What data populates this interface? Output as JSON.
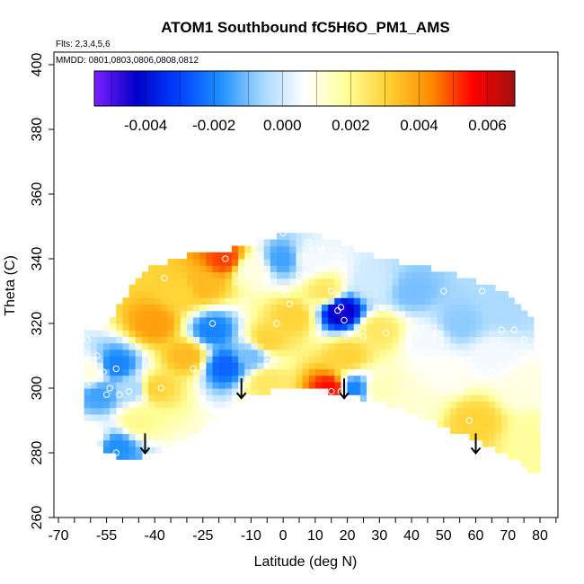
{
  "chart_data": {
    "type": "heatmap",
    "title": "ATOM1 Southbound fC5H6O_PM1_AMS",
    "flights_note": "Flts: 2,3,4,5,6",
    "dates_note": "MMDD: 0801,0803,0806,0808,0812",
    "xlabel": "Latitude (deg N)",
    "ylabel": "Theta (C)",
    "xlim": [
      -70,
      85
    ],
    "ylim": [
      260,
      400
    ],
    "x_tick_labels": [
      "-70",
      "-55",
      "-40",
      "-25",
      "-10",
      "0",
      "10",
      "20",
      "30",
      "40",
      "50",
      "60",
      "70",
      "80"
    ],
    "x_tick_values": [
      -70,
      -55,
      -40,
      -25,
      -10,
      0,
      10,
      20,
      30,
      40,
      50,
      60,
      70,
      80
    ],
    "x_minor_ticks": [
      -65,
      -60,
      -50,
      -45,
      -35,
      -30,
      -20,
      -15,
      -5,
      5,
      15,
      25,
      35,
      45,
      55,
      65,
      75,
      85
    ],
    "y_tick_labels": [
      "260",
      "280",
      "300",
      "320",
      "340",
      "360",
      "380",
      "400"
    ],
    "y_tick_values": [
      260,
      280,
      300,
      320,
      340,
      360,
      380,
      400
    ],
    "colorbar": {
      "range": [
        -0.0055,
        0.0068
      ],
      "tick_labels": [
        "-0.004",
        "-0.002",
        "0.000",
        "0.002",
        "0.004",
        "0.006"
      ],
      "tick_values": [
        -0.004,
        -0.002,
        0.0,
        0.002,
        0.004,
        0.006
      ],
      "colors": [
        "#7f1fff",
        "#0000c8",
        "#0040ff",
        "#1e90ff",
        "#a6d8ff",
        "#ffffff",
        "#ffff99",
        "#ffd030",
        "#ff8c00",
        "#ff0000",
        "#a01010"
      ]
    },
    "field": [
      [
        -60,
        305,
        0.001
      ],
      [
        -57,
        298,
        -0.0015
      ],
      [
        -52,
        307,
        -0.002
      ],
      [
        -47,
        300,
        -0.0005
      ],
      [
        -60,
        285,
        0.0008
      ],
      [
        -52,
        282,
        -0.0018
      ],
      [
        -45,
        290,
        0.002
      ],
      [
        -40,
        300,
        0.003
      ],
      [
        -30,
        310,
        0.0035
      ],
      [
        -40,
        320,
        0.004
      ],
      [
        -32,
        330,
        0.003
      ],
      [
        -25,
        332,
        0.0035
      ],
      [
        -18,
        340,
        0.005
      ],
      [
        -10,
        337,
        0.001
      ],
      [
        -22,
        318,
        -0.002
      ],
      [
        -18,
        307,
        -0.0025
      ],
      [
        -10,
        310,
        -0.001
      ],
      [
        -5,
        315,
        0.003
      ],
      [
        3,
        322,
        0.003
      ],
      [
        0,
        340,
        -0.0015
      ],
      [
        8,
        340,
        0.0005
      ],
      [
        13,
        330,
        0.0025
      ],
      [
        18,
        324,
        -0.0045
      ],
      [
        20,
        310,
        0.003
      ],
      [
        15,
        300,
        0.0055
      ],
      [
        22,
        300,
        -0.002
      ],
      [
        30,
        318,
        0.0025
      ],
      [
        28,
        332,
        0.0
      ],
      [
        40,
        330,
        -0.001
      ],
      [
        45,
        315,
        0.0005
      ],
      [
        55,
        320,
        -0.0008
      ],
      [
        65,
        310,
        0.0005
      ],
      [
        70,
        325,
        -0.0005
      ],
      [
        75,
        300,
        0.001
      ],
      [
        60,
        290,
        0.003
      ],
      [
        78,
        285,
        0.0018
      ],
      [
        40,
        295,
        0.0012
      ],
      [
        30,
        300,
        0.0015
      ],
      [
        50,
        305,
        0.0008
      ],
      [
        -5,
        302,
        0.0025
      ]
    ],
    "observations": [
      [
        -61,
        315
      ],
      [
        -58,
        310
      ],
      [
        -56,
        305
      ],
      [
        -54,
        300
      ],
      [
        -51,
        298
      ],
      [
        -48,
        299
      ],
      [
        -55,
        298
      ],
      [
        -52,
        306
      ],
      [
        -60,
        302
      ],
      [
        -57,
        281
      ],
      [
        -52,
        280
      ],
      [
        -41,
        307
      ],
      [
        -38,
        300
      ],
      [
        -32,
        286
      ],
      [
        -42,
        282
      ],
      [
        -43,
        297
      ],
      [
        -28,
        306
      ],
      [
        -25,
        307
      ],
      [
        -22,
        320
      ],
      [
        -18,
        340
      ],
      [
        -14,
        333
      ],
      [
        -12,
        327
      ],
      [
        -8,
        341
      ],
      [
        -2,
        320
      ],
      [
        0,
        330
      ],
      [
        1,
        329
      ],
      [
        2,
        326
      ],
      [
        5,
        335
      ],
      [
        7,
        335
      ],
      [
        8,
        345
      ],
      [
        10,
        349
      ],
      [
        12,
        343
      ],
      [
        15,
        330
      ],
      [
        17,
        324
      ],
      [
        18,
        325
      ],
      [
        19,
        321
      ],
      [
        15,
        299
      ],
      [
        18,
        299
      ],
      [
        20,
        316
      ],
      [
        25,
        316
      ],
      [
        28,
        323
      ],
      [
        32,
        317
      ],
      [
        38,
        301
      ],
      [
        43,
        291
      ],
      [
        48,
        317
      ],
      [
        50,
        330
      ],
      [
        55,
        299
      ],
      [
        58,
        290
      ],
      [
        62,
        330
      ],
      [
        65,
        305
      ],
      [
        68,
        318
      ],
      [
        72,
        318
      ],
      [
        75,
        315
      ],
      [
        80,
        288
      ],
      [
        -37,
        334
      ],
      [
        -63,
        320
      ],
      [
        0,
        348
      ],
      [
        -5,
        308
      ]
    ],
    "arrows": [
      -43,
      -13,
      19,
      60
    ]
  }
}
